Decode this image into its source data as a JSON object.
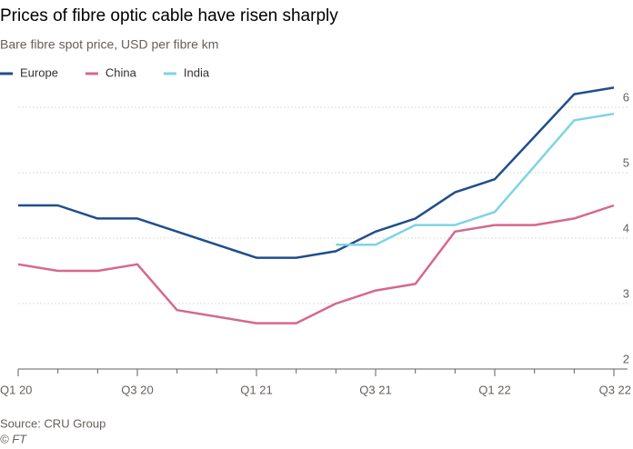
{
  "chart_data": {
    "type": "line",
    "title": "Prices of fibre optic cable have risen sharply",
    "subtitle": "Bare fibre spot price, USD per fibre km",
    "source": "Source: CRU Group",
    "credit": "© FT",
    "categories": [
      "Q1 20",
      null,
      null,
      "Q3 20",
      null,
      null,
      "Q1 21",
      null,
      null,
      "Q3 21",
      null,
      null,
      "Q1 22",
      null,
      null,
      "Q3 22"
    ],
    "series": [
      {
        "name": "Europe",
        "color": "#1f4e8c",
        "values": [
          4.5,
          4.5,
          4.3,
          4.3,
          4.1,
          3.9,
          3.7,
          3.7,
          3.8,
          4.1,
          4.3,
          4.7,
          4.9,
          5.55,
          6.2,
          6.3
        ]
      },
      {
        "name": "China",
        "color": "#d6688d",
        "values": [
          3.6,
          3.5,
          3.5,
          3.6,
          2.9,
          2.8,
          2.7,
          2.7,
          3.0,
          3.2,
          3.3,
          4.1,
          4.2,
          4.2,
          4.3,
          4.5
        ]
      },
      {
        "name": "India",
        "color": "#7fd3e6",
        "values": [
          null,
          null,
          null,
          null,
          null,
          null,
          null,
          null,
          3.9,
          3.9,
          4.2,
          4.2,
          4.4,
          5.1,
          5.8,
          5.9
        ]
      }
    ],
    "ylim": [
      2,
      6.4
    ],
    "yticks": [
      2,
      3,
      4,
      5,
      6
    ],
    "y_axis_side": "right",
    "grid": true,
    "legend": "top"
  }
}
